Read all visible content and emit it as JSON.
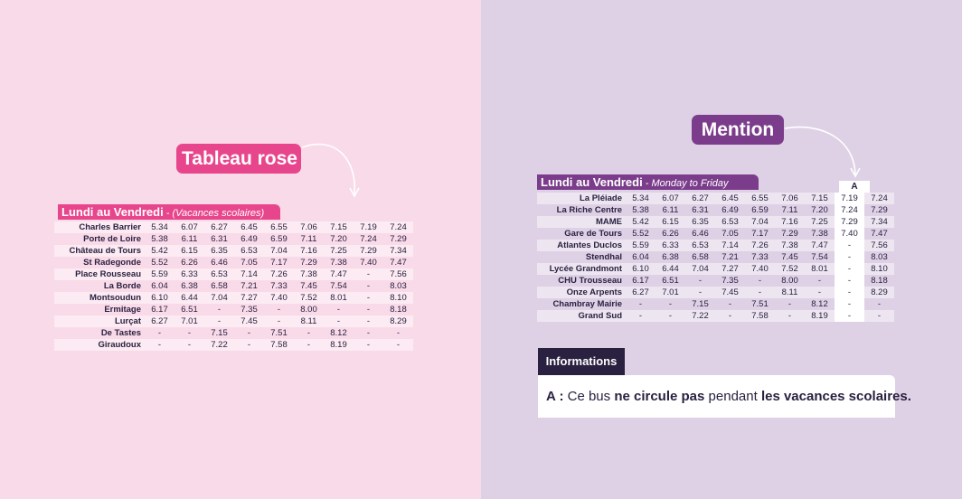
{
  "left": {
    "pill_label": "Tableau rose",
    "header_title": "Lundi au Vendredi",
    "header_subtitle": " - (Vacances scolaires)",
    "rows": [
      {
        "stop": "Charles Barrier",
        "times": [
          "5.34",
          "6.07",
          "6.27",
          "6.45",
          "6.55",
          "7.06",
          "7.15",
          "7.19",
          "7.24"
        ]
      },
      {
        "stop": "Porte de Loire",
        "times": [
          "5.38",
          "6.11",
          "6.31",
          "6.49",
          "6.59",
          "7.11",
          "7.20",
          "7.24",
          "7.29"
        ]
      },
      {
        "stop": "Château de Tours",
        "times": [
          "5.42",
          "6.15",
          "6.35",
          "6.53",
          "7.04",
          "7.16",
          "7.25",
          "7.29",
          "7.34"
        ]
      },
      {
        "stop": "St Radegonde",
        "times": [
          "5.52",
          "6.26",
          "6.46",
          "7.05",
          "7.17",
          "7.29",
          "7.38",
          "7.40",
          "7.47"
        ]
      },
      {
        "stop": "Place Rousseau",
        "times": [
          "5.59",
          "6.33",
          "6.53",
          "7.14",
          "7.26",
          "7.38",
          "7.47",
          "-",
          "7.56"
        ]
      },
      {
        "stop": "La Borde",
        "times": [
          "6.04",
          "6.38",
          "6.58",
          "7.21",
          "7.33",
          "7.45",
          "7.54",
          "-",
          "8.03"
        ]
      },
      {
        "stop": "Montsoudun",
        "times": [
          "6.10",
          "6.44",
          "7.04",
          "7.27",
          "7.40",
          "7.52",
          "8.01",
          "-",
          "8.10"
        ]
      },
      {
        "stop": "Ermitage",
        "times": [
          "6.17",
          "6.51",
          "-",
          "7.35",
          "-",
          "8.00",
          "-",
          "-",
          "8.18"
        ]
      },
      {
        "stop": "Lurçat",
        "times": [
          "6.27",
          "7.01",
          "-",
          "7.45",
          "-",
          "8.11",
          "-",
          "-",
          "8.29"
        ]
      },
      {
        "stop": "De Tastes",
        "times": [
          "-",
          "-",
          "7.15",
          "-",
          "7.51",
          "-",
          "8.12",
          "-",
          "-"
        ]
      },
      {
        "stop": "Giraudoux",
        "times": [
          "-",
          "-",
          "7.22",
          "-",
          "7.58",
          "-",
          "8.19",
          "-",
          "-"
        ]
      }
    ]
  },
  "right": {
    "pill_label": "Mention",
    "header_title": "Lundi au Vendredi",
    "header_subtitle": " - Monday to Friday",
    "column_mention": "A",
    "rows": [
      {
        "stop": "La Pléiade",
        "times": [
          "5.34",
          "6.07",
          "6.27",
          "6.45",
          "6.55",
          "7.06",
          "7.15",
          "7.19",
          "7.24"
        ]
      },
      {
        "stop": "La Riche Centre",
        "times": [
          "5.38",
          "6.11",
          "6.31",
          "6.49",
          "6.59",
          "7.11",
          "7.20",
          "7.24",
          "7.29"
        ]
      },
      {
        "stop": "MAME",
        "times": [
          "5.42",
          "6.15",
          "6.35",
          "6.53",
          "7.04",
          "7.16",
          "7.25",
          "7.29",
          "7.34"
        ]
      },
      {
        "stop": "Gare de Tours",
        "times": [
          "5.52",
          "6.26",
          "6.46",
          "7.05",
          "7.17",
          "7.29",
          "7.38",
          "7.40",
          "7.47"
        ]
      },
      {
        "stop": "Atlantes Duclos",
        "times": [
          "5.59",
          "6.33",
          "6.53",
          "7.14",
          "7.26",
          "7.38",
          "7.47",
          "-",
          "7.56"
        ]
      },
      {
        "stop": "Stendhal",
        "times": [
          "6.04",
          "6.38",
          "6.58",
          "7.21",
          "7.33",
          "7.45",
          "7.54",
          "-",
          "8.03"
        ]
      },
      {
        "stop": "Lycée Grandmont",
        "times": [
          "6.10",
          "6.44",
          "7.04",
          "7.27",
          "7.40",
          "7.52",
          "8.01",
          "-",
          "8.10"
        ]
      },
      {
        "stop": "CHU Trousseau",
        "times": [
          "6.17",
          "6.51",
          "-",
          "7.35",
          "-",
          "8.00",
          "-",
          "-",
          "8.18"
        ]
      },
      {
        "stop": "Onze Arpents",
        "times": [
          "6.27",
          "7.01",
          "-",
          "7.45",
          "-",
          "8.11",
          "-",
          "-",
          "8.29"
        ]
      },
      {
        "stop": "Chambray Mairie",
        "times": [
          "-",
          "-",
          "7.15",
          "-",
          "7.51",
          "-",
          "8.12",
          "-",
          "-"
        ]
      },
      {
        "stop": "Grand Sud",
        "times": [
          "-",
          "-",
          "7.22",
          "-",
          "7.58",
          "-",
          "8.19",
          "-",
          "-"
        ]
      }
    ],
    "info_tab_label": "Informations",
    "info_note": {
      "prefix": "A : ",
      "part1": "Ce bus ",
      "bold1": "ne circule pas",
      "part2": " pendant ",
      "bold2": "les vacances scolaires."
    }
  },
  "colors": {
    "pink": "#e8468c",
    "purple": "#7b3d8b",
    "navy": "#2a2140",
    "bg_left": "#f9dae8",
    "bg_right": "#ded1e6"
  }
}
